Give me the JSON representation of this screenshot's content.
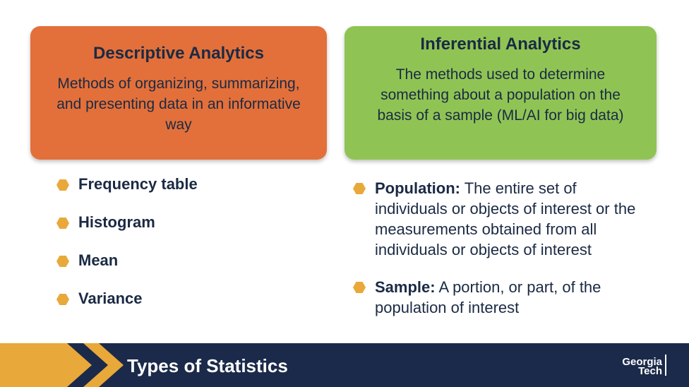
{
  "descriptive": {
    "title": "Descriptive Analytics",
    "description": "Methods of organizing, summarizing, and presenting data in an informative way"
  },
  "inferential": {
    "title": "Inferential Analytics",
    "description": "The methods used to determine something about a population on the basis of a sample (ML/AI for big data)"
  },
  "left_bullets": [
    "Frequency table",
    "Histogram",
    "Mean",
    "Variance"
  ],
  "right_bullets": [
    {
      "term": "Population:",
      "text": " The entire set of individuals or objects of interest or the measurements obtained from all individuals or objects of interest"
    },
    {
      "term": "Sample:",
      "text": " A portion, or part, of the population of interest"
    }
  ],
  "footer": {
    "title": "Types of Statistics",
    "logo_line1": "Georgia",
    "logo_line2": "Tech"
  },
  "colors": {
    "descriptive_card": "#E3703A",
    "inferential_card": "#8FC454",
    "bullet": "#E8A93A",
    "footer_bg": "#1B2A4A",
    "chevron": "#E8A93A"
  }
}
